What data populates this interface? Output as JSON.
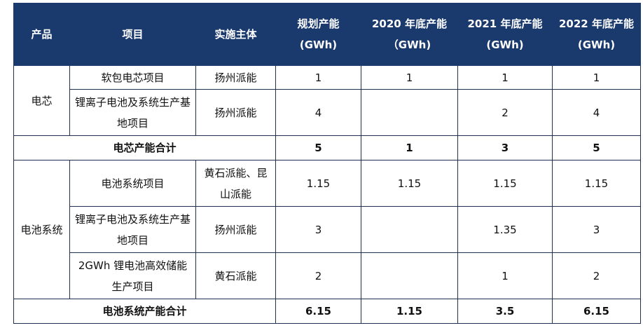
{
  "header": {
    "c1": "产品",
    "c2": "项目",
    "c3": "实施主体",
    "c4": "规划产能(GWh)",
    "c5": "2020 年底产能（GWh)",
    "c6": "2021 年底产能(GWh)",
    "c7": "2022 年底产能(GWh)"
  },
  "cell": {
    "product": "电芯",
    "r1": {
      "project": "软包电芯项目",
      "entity": "扬州派能",
      "plan": "1",
      "y2020": "1",
      "y2021": "1",
      "y2022": "1"
    },
    "r2": {
      "project": "锂离子电池及系统生产基地项目",
      "entity": "扬州派能",
      "plan": "4",
      "y2020": "",
      "y2021": "2",
      "y2022": "4"
    },
    "sum": {
      "label": "电芯产能合计",
      "plan": "5",
      "y2020": "1",
      "y2021": "3",
      "y2022": "5"
    }
  },
  "system": {
    "product": "电池系统",
    "r1": {
      "project": "电池系统项目",
      "entity": "黄石派能、昆山派能",
      "plan": "1.15",
      "y2020": "1.15",
      "y2021": "1.15",
      "y2022": "1.15"
    },
    "r2": {
      "project": "锂离子电池及系统生产基地项目",
      "entity": "扬州派能",
      "plan": "3",
      "y2020": "",
      "y2021": "1.35",
      "y2022": "3"
    },
    "r3": {
      "project": "2GWh 锂电池高效储能生产项目",
      "entity": "黄石派能",
      "plan": "2",
      "y2020": "",
      "y2021": "1",
      "y2022": "2"
    },
    "sum": {
      "label": "电池系统产能合计",
      "plan": "6.15",
      "y2020": "1.15",
      "y2021": "3.5",
      "y2022": "6.15"
    }
  }
}
